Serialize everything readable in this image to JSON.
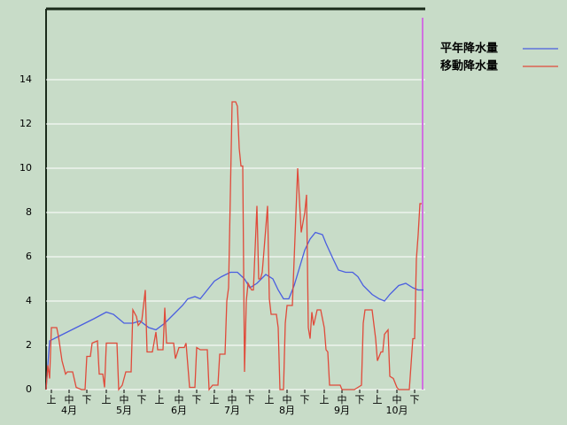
{
  "chart_data": {
    "type": "line",
    "xlim": [
      0,
      214
    ],
    "ylim": [
      0,
      17.2
    ],
    "yticks": [
      0,
      2,
      4,
      6,
      8,
      10,
      12,
      14
    ],
    "grid": true,
    "legend": "upper right",
    "xticks": [
      {
        "value": 3,
        "label": "上"
      },
      {
        "value": 13,
        "label": "中"
      },
      {
        "value": 23,
        "label": "下"
      },
      {
        "value": 34,
        "label": "上"
      },
      {
        "value": 44,
        "label": "中"
      },
      {
        "value": 54,
        "label": "下"
      },
      {
        "value": 64,
        "label": "上"
      },
      {
        "value": 75,
        "label": "中"
      },
      {
        "value": 85,
        "label": "下"
      },
      {
        "value": 95,
        "label": "上"
      },
      {
        "value": 105,
        "label": "中"
      },
      {
        "value": 115,
        "label": "下"
      },
      {
        "value": 126,
        "label": "上"
      },
      {
        "value": 136,
        "label": "中"
      },
      {
        "value": 146,
        "label": "下"
      },
      {
        "value": 157,
        "label": "上"
      },
      {
        "value": 167,
        "label": "中"
      },
      {
        "value": 177,
        "label": "下"
      },
      {
        "value": 187,
        "label": "上"
      },
      {
        "value": 198,
        "label": "中"
      },
      {
        "value": 208,
        "label": "下"
      }
    ],
    "months": [
      {
        "value": 13,
        "label": "4月"
      },
      {
        "value": 44,
        "label": "5月"
      },
      {
        "value": 75,
        "label": "6月"
      },
      {
        "value": 105,
        "label": "7月"
      },
      {
        "value": 136,
        "label": "8月"
      },
      {
        "value": 167,
        "label": "9月"
      },
      {
        "value": 198,
        "label": "10月"
      }
    ],
    "marker": {
      "value": 212.5,
      "color": "#d070e0"
    },
    "series": [
      {
        "name": "平年降水量",
        "color": "#4a5ee0",
        "x": [
          0,
          2,
          7,
          12,
          17,
          22,
          27,
          34,
          38,
          44,
          49,
          53,
          58,
          62,
          67,
          72,
          77,
          80,
          84,
          87,
          90,
          95,
          99,
          104,
          108,
          112,
          115,
          119,
          124,
          128,
          131,
          134,
          137,
          140,
          143,
          146,
          149,
          152,
          156,
          158,
          162,
          165,
          169,
          173,
          176,
          179,
          184,
          188,
          191,
          194,
          199,
          203,
          207,
          210,
          213
        ],
        "values": [
          0,
          2.2,
          2.4,
          2.6,
          2.8,
          3.0,
          3.2,
          3.5,
          3.4,
          3.0,
          3.0,
          3.1,
          2.8,
          2.7,
          3.0,
          3.4,
          3.8,
          4.1,
          4.2,
          4.1,
          4.4,
          4.9,
          5.1,
          5.3,
          5.3,
          5.0,
          4.6,
          4.8,
          5.2,
          5.0,
          4.5,
          4.1,
          4.1,
          4.7,
          5.5,
          6.3,
          6.8,
          7.1,
          7.0,
          6.6,
          5.9,
          5.4,
          5.3,
          5.3,
          5.1,
          4.7,
          4.3,
          4.1,
          4.0,
          4.3,
          4.7,
          4.8,
          4.6,
          4.5,
          4.5
        ]
      },
      {
        "name": "移動降水量",
        "color": "#e04a3a",
        "x": [
          0,
          1,
          2,
          3,
          6,
          7,
          9,
          11,
          12,
          15,
          17,
          20,
          22,
          23,
          25,
          26,
          29,
          30,
          32,
          33,
          34,
          40,
          41,
          43,
          45,
          48,
          49,
          51,
          52,
          54,
          56,
          57,
          60,
          62,
          63,
          66,
          67,
          68,
          72,
          73,
          75,
          78,
          79,
          81,
          84,
          85,
          87,
          91,
          92,
          94,
          97,
          98,
          101,
          102,
          103,
          105,
          107,
          108,
          109,
          110,
          111,
          112,
          113,
          114,
          116,
          117,
          119,
          120,
          121,
          122,
          125,
          126,
          127,
          130,
          131,
          132,
          134,
          135,
          136,
          139,
          142,
          144,
          146,
          147,
          148,
          149,
          150,
          151,
          153,
          155,
          157,
          158,
          159,
          160,
          166,
          167,
          174,
          176,
          178,
          179,
          180,
          184,
          186,
          187,
          189,
          190,
          191,
          193,
          194,
          196,
          198,
          199,
          205,
          207,
          208,
          209,
          210,
          211,
          212
        ],
        "values": [
          0,
          1.1,
          0.5,
          2.8,
          2.8,
          2.4,
          1.3,
          0.7,
          0.8,
          0.8,
          0.1,
          0,
          0,
          1.5,
          1.5,
          2.1,
          2.2,
          0.7,
          0.7,
          0.1,
          2.1,
          2.1,
          0,
          0.2,
          0.8,
          0.8,
          3.6,
          3.3,
          2.9,
          3.1,
          4.5,
          1.7,
          1.7,
          2.6,
          1.8,
          1.8,
          3.7,
          2.1,
          2.1,
          1.4,
          1.9,
          1.9,
          2.1,
          0.1,
          0.1,
          1.9,
          1.8,
          1.8,
          0,
          0.2,
          0.2,
          1.6,
          1.6,
          4.0,
          4.6,
          13.0,
          13.0,
          12.8,
          10.9,
          10.1,
          10.1,
          0.8,
          4.0,
          4.8,
          4.5,
          4.5,
          8.3,
          5.0,
          5.0,
          5.3,
          8.3,
          4.1,
          3.4,
          3.4,
          2.8,
          0,
          0,
          3.0,
          3.8,
          3.8,
          10.0,
          7.1,
          8.0,
          8.8,
          2.8,
          2.3,
          3.5,
          2.9,
          3.6,
          3.6,
          2.8,
          1.8,
          1.7,
          0.2,
          0.2,
          0,
          0,
          0.1,
          0.2,
          3.0,
          3.6,
          3.6,
          2.3,
          1.3,
          1.7,
          1.7,
          2.5,
          2.7,
          0.6,
          0.5,
          0.1,
          0,
          0,
          2.3,
          2.3,
          5.9,
          7.0,
          8.4,
          8.4
        ]
      }
    ]
  }
}
